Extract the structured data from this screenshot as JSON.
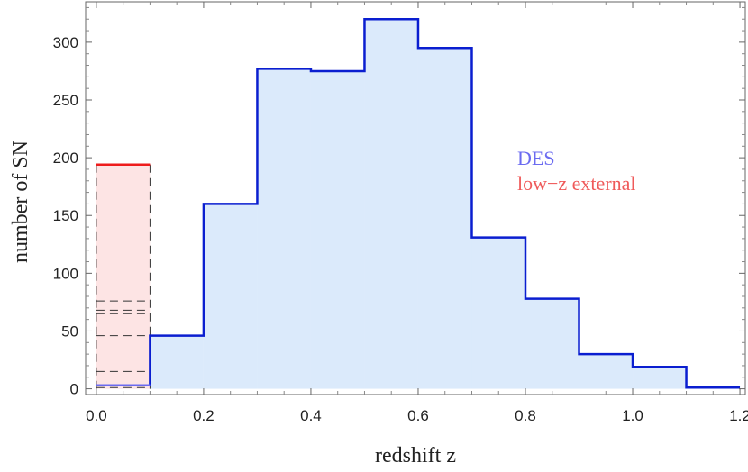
{
  "chart_data": {
    "type": "histogram",
    "title": "",
    "xlabel": "redshift z",
    "ylabel": "number of SN",
    "xlim": [
      -0.02,
      1.21
    ],
    "ylim": [
      -5,
      335
    ],
    "x_ticks": [
      "0.0",
      "0.2",
      "0.4",
      "0.6",
      "0.8",
      "1.0",
      "1.2"
    ],
    "y_ticks": [
      "0",
      "50",
      "100",
      "150",
      "200",
      "250",
      "300"
    ],
    "x_tick_values": [
      0.0,
      0.2,
      0.4,
      0.6,
      0.8,
      1.0,
      1.2
    ],
    "y_tick_values": [
      0,
      50,
      100,
      150,
      200,
      250,
      300
    ],
    "grid": false,
    "legend_position": "right",
    "series": [
      {
        "name": "DES",
        "color": "#0a1ed0",
        "fill": "#dbeafb",
        "legend_color": "#6b6bf0",
        "bin_edges": [
          0.0,
          0.1,
          0.2,
          0.3,
          0.4,
          0.5,
          0.6,
          0.7,
          0.8,
          0.9,
          1.0,
          1.1,
          1.2
        ],
        "counts": [
          3,
          46,
          160,
          277,
          275,
          320,
          295,
          131,
          78,
          30,
          19,
          1
        ]
      },
      {
        "name": "low−z external",
        "color": "#ee1c1c",
        "fill": "#fde4e4",
        "legend_color": "#ef5a5a",
        "bin_edges": [
          0.0,
          0.1
        ],
        "counts": [
          194
        ]
      }
    ],
    "stacked_component_levels": [
      1,
      15,
      46,
      65,
      68,
      76,
      194
    ]
  }
}
